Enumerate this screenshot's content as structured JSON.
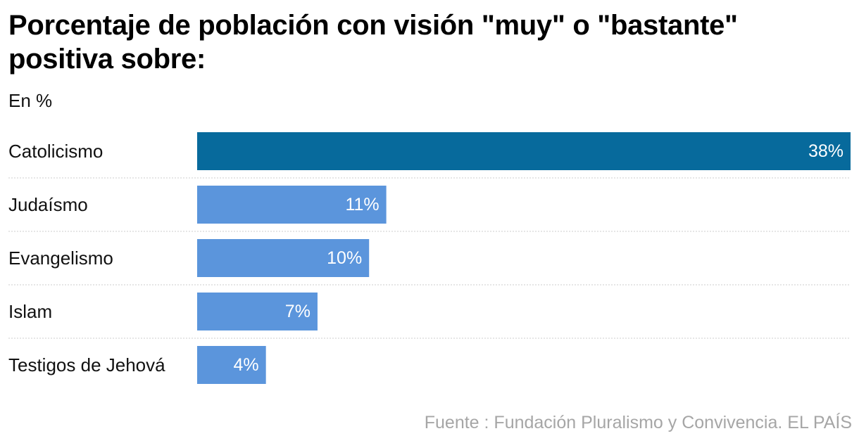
{
  "header": {
    "title": "Porcentaje de población con visión \"muy\" o \"bastante\" positiva sobre:",
    "subtitle": "En %"
  },
  "footer": {
    "source": "Fuente : Fundación Pluralismo y Convivencia. EL PAÍS"
  },
  "colors": {
    "highlight_bar": "#076a9c",
    "bar": "#5b95dc",
    "divider": "#cccccc",
    "value_text": "#ffffff"
  },
  "chart_data": {
    "type": "bar",
    "orientation": "horizontal",
    "title": "Porcentaje de población con visión \"muy\" o \"bastante\" positiva sobre:",
    "subtitle": "En %",
    "categories": [
      "Catolicismo",
      "Judaísmo",
      "Evangelismo",
      "Islam",
      "Testigos de Jehová"
    ],
    "values": [
      38,
      11,
      10,
      7,
      4
    ],
    "value_labels": [
      "38%",
      "11%",
      "10%",
      "7%",
      "4%"
    ],
    "highlight": "Catolicismo",
    "xlim": [
      0,
      38
    ],
    "grid": false,
    "source": "Fuente : Fundación Pluralismo y Convivencia. EL PAÍS"
  }
}
